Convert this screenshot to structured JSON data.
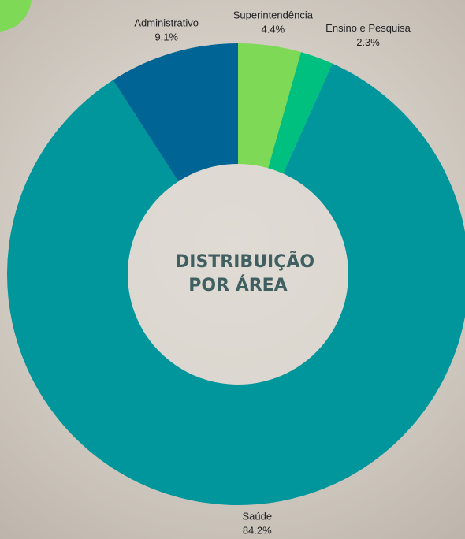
{
  "chart_data": {
    "type": "pie",
    "title": "DISTRIBUIÇÃO POR ÁREA",
    "categories": [
      "Superintendência",
      "Ensino e Pesquisa",
      "Saúde",
      "Administrativo"
    ],
    "values": [
      4.4,
      2.3,
      84.2,
      9.1
    ],
    "value_labels": [
      "4.4%",
      "2.3%",
      "84.2%",
      "9.1%"
    ],
    "colors": [
      "#7ed957",
      "#00c07f",
      "#00969b",
      "#006494"
    ]
  }
}
